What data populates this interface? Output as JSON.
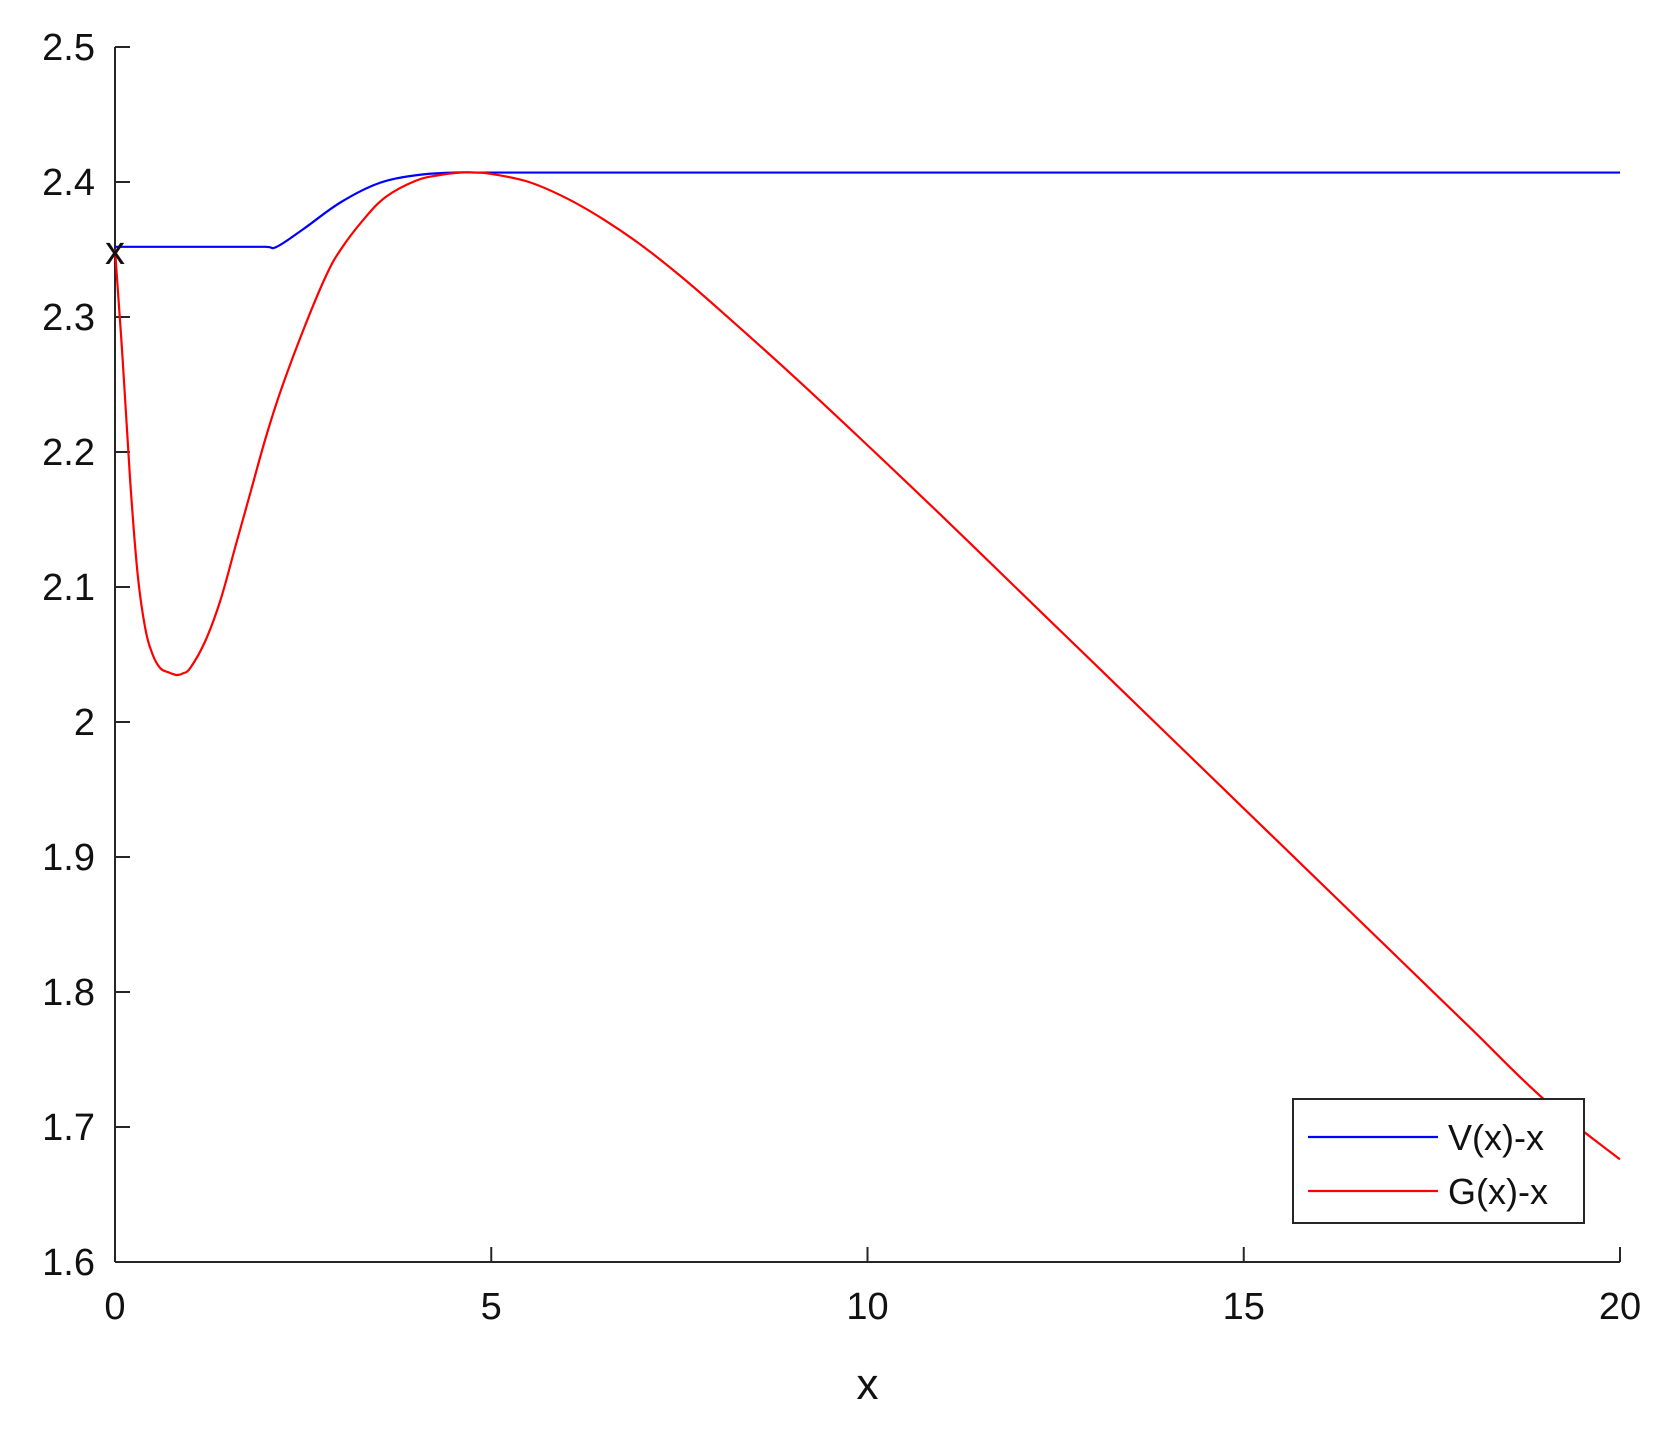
{
  "chart_data": {
    "type": "line",
    "title": "",
    "xlabel": "x",
    "ylabel": "",
    "xlim": [
      0,
      20
    ],
    "ylim": [
      1.6,
      2.5
    ],
    "xticks": [
      0,
      5,
      10,
      15,
      20
    ],
    "xtick_labels": [
      "0",
      "5",
      "10",
      "15",
      "20"
    ],
    "yticks": [
      1.6,
      1.7,
      1.8,
      1.9,
      2.0,
      2.1,
      2.2,
      2.3,
      2.4,
      2.5
    ],
    "ytick_labels": [
      "1.6",
      "1.7",
      "1.8",
      "1.9",
      "2",
      "2.1",
      "2.2",
      "2.3",
      "2.4",
      "2.5"
    ],
    "grid": false,
    "legend_position": "bottom-right",
    "series": [
      {
        "name": "V(x)-x",
        "color": "#0000ff",
        "x": [
          0,
          0.5,
          1,
          1.5,
          2,
          2.15,
          2.5,
          3,
          3.5,
          4,
          4.5,
          4.8,
          5,
          6,
          8,
          10,
          12,
          15,
          18,
          20
        ],
        "y": [
          2.352,
          2.352,
          2.352,
          2.352,
          2.352,
          2.352,
          2.365,
          2.385,
          2.399,
          2.405,
          2.407,
          2.407,
          2.407,
          2.407,
          2.407,
          2.407,
          2.407,
          2.407,
          2.407,
          2.407
        ]
      },
      {
        "name": "G(x)-x",
        "color": "#ff0000",
        "x": [
          0,
          0.1,
          0.2,
          0.3,
          0.4,
          0.5,
          0.6,
          0.7,
          0.8,
          0.85,
          0.9,
          1.0,
          1.2,
          1.4,
          1.6,
          1.8,
          2.0,
          2.2,
          2.5,
          2.8,
          3.0,
          3.3,
          3.6,
          4.0,
          4.3,
          4.6,
          4.8,
          5.0,
          5.5,
          6.0,
          6.5,
          7.0,
          7.5,
          8.0,
          9.0,
          10.0,
          11.0,
          12.0,
          13.0,
          14.0,
          15.0,
          16.0,
          17.0,
          18.0,
          19.0,
          20.0
        ],
        "y": [
          2.35,
          2.27,
          2.18,
          2.11,
          2.07,
          2.05,
          2.04,
          2.037,
          2.035,
          2.035,
          2.036,
          2.04,
          2.06,
          2.09,
          2.13,
          2.17,
          2.21,
          2.245,
          2.29,
          2.33,
          2.35,
          2.372,
          2.389,
          2.401,
          2.405,
          2.407,
          2.407,
          2.406,
          2.4,
          2.388,
          2.372,
          2.353,
          2.331,
          2.307,
          2.257,
          2.205,
          2.152,
          2.098,
          2.044,
          1.99,
          1.936,
          1.882,
          1.828,
          1.774,
          1.72,
          1.676
        ]
      }
    ],
    "markers": [
      {
        "text": "x",
        "x": 0,
        "y": 2.348
      }
    ]
  }
}
